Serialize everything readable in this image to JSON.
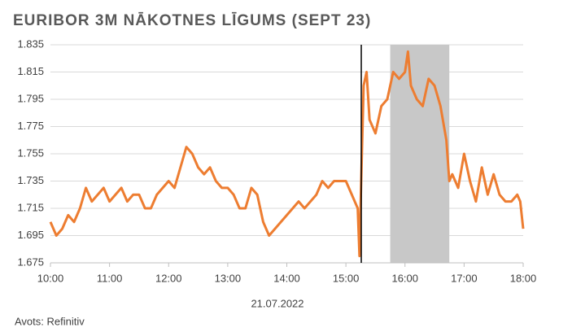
{
  "chart_data": {
    "type": "line",
    "title": "EURIBOR 3M NĀKOTNES LĪGUMS (SEPT 23)",
    "x_label": "21.07.2022",
    "source": "Avots: Refinitiv",
    "color": "#ed7d31",
    "x": [
      10.0,
      10.1,
      10.2,
      10.3,
      10.4,
      10.5,
      10.6,
      10.7,
      10.8,
      10.9,
      11.0,
      11.1,
      11.2,
      11.3,
      11.4,
      11.5,
      11.6,
      11.7,
      11.8,
      11.9,
      12.0,
      12.1,
      12.2,
      12.3,
      12.4,
      12.5,
      12.6,
      12.7,
      12.8,
      12.9,
      13.0,
      13.1,
      13.2,
      13.3,
      13.4,
      13.5,
      13.6,
      13.7,
      13.8,
      13.9,
      14.0,
      14.1,
      14.2,
      14.3,
      14.4,
      14.5,
      14.6,
      14.7,
      14.8,
      14.9,
      15.0,
      15.1,
      15.2,
      15.23,
      15.25,
      15.3,
      15.35,
      15.4,
      15.5,
      15.6,
      15.7,
      15.8,
      15.9,
      16.0,
      16.05,
      16.1,
      16.2,
      16.3,
      16.4,
      16.5,
      16.6,
      16.7,
      16.75,
      16.8,
      16.9,
      17.0,
      17.1,
      17.2,
      17.3,
      17.4,
      17.5,
      17.6,
      17.7,
      17.8,
      17.9,
      17.95,
      18.0
    ],
    "values": [
      1.705,
      1.695,
      1.7,
      1.71,
      1.705,
      1.715,
      1.73,
      1.72,
      1.725,
      1.73,
      1.72,
      1.725,
      1.73,
      1.72,
      1.725,
      1.725,
      1.715,
      1.715,
      1.725,
      1.73,
      1.735,
      1.73,
      1.745,
      1.76,
      1.755,
      1.745,
      1.74,
      1.745,
      1.735,
      1.73,
      1.73,
      1.725,
      1.715,
      1.715,
      1.73,
      1.725,
      1.705,
      1.695,
      1.7,
      1.705,
      1.71,
      1.715,
      1.72,
      1.715,
      1.72,
      1.725,
      1.735,
      1.73,
      1.735,
      1.735,
      1.735,
      1.725,
      1.715,
      1.68,
      1.72,
      1.805,
      1.815,
      1.78,
      1.77,
      1.79,
      1.795,
      1.815,
      1.81,
      1.815,
      1.83,
      1.805,
      1.795,
      1.79,
      1.81,
      1.805,
      1.79,
      1.765,
      1.735,
      1.74,
      1.73,
      1.755,
      1.735,
      1.72,
      1.745,
      1.725,
      1.74,
      1.725,
      1.72,
      1.72,
      1.725,
      1.72,
      1.7
    ],
    "xlim": [
      10,
      18
    ],
    "xticks": [
      {
        "value": 10,
        "label": "10:00"
      },
      {
        "value": 11,
        "label": "11:00"
      },
      {
        "value": 12,
        "label": "12:00"
      },
      {
        "value": 13,
        "label": "13:00"
      },
      {
        "value": 14,
        "label": "14:00"
      },
      {
        "value": 15,
        "label": "15:00"
      },
      {
        "value": 16,
        "label": "16:00"
      },
      {
        "value": 17,
        "label": "17:00"
      },
      {
        "value": 18,
        "label": "18:00"
      }
    ],
    "ylim": [
      1.675,
      1.835
    ],
    "yticks": [
      1.675,
      1.695,
      1.715,
      1.735,
      1.755,
      1.775,
      1.795,
      1.815,
      1.835
    ],
    "grid": true,
    "shaded_range": [
      15.75,
      16.75
    ],
    "shade_color": "#c8c8c8",
    "vline": 15.26,
    "vline_color": "#000000"
  }
}
